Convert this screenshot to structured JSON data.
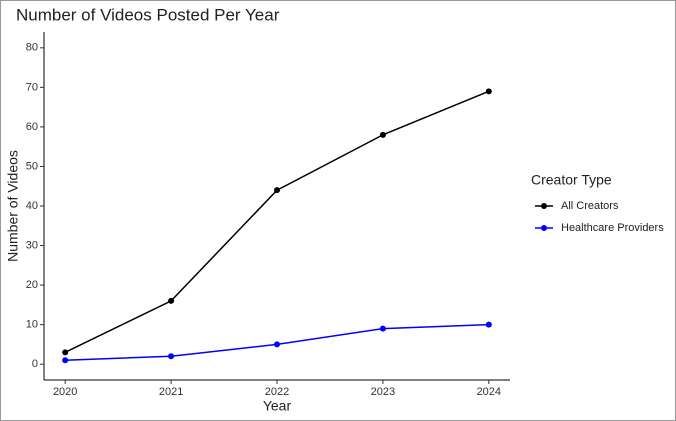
{
  "chart_data": {
    "type": "line",
    "title": "Number of Videos Posted Per Year",
    "x_label": "Year",
    "y_label": "Number of Videos",
    "x": [
      2020,
      2021,
      2022,
      2023,
      2024
    ],
    "xlim": [
      2019.8,
      2024.2
    ],
    "xticks": [
      2020,
      2021,
      2022,
      2023,
      2024
    ],
    "ylim": [
      -4,
      84
    ],
    "yticks": [
      0,
      10,
      20,
      30,
      40,
      50,
      60,
      70,
      80
    ],
    "grid": false,
    "legend_title": "Creator Type",
    "legend_position": "right",
    "series": [
      {
        "name": "All Creators",
        "color": "#000000",
        "values": [
          3,
          16,
          44,
          58,
          69
        ]
      },
      {
        "name": "Healthcare Providers",
        "color": "#0000ff",
        "values": [
          1,
          2,
          5,
          9,
          10
        ]
      }
    ]
  }
}
